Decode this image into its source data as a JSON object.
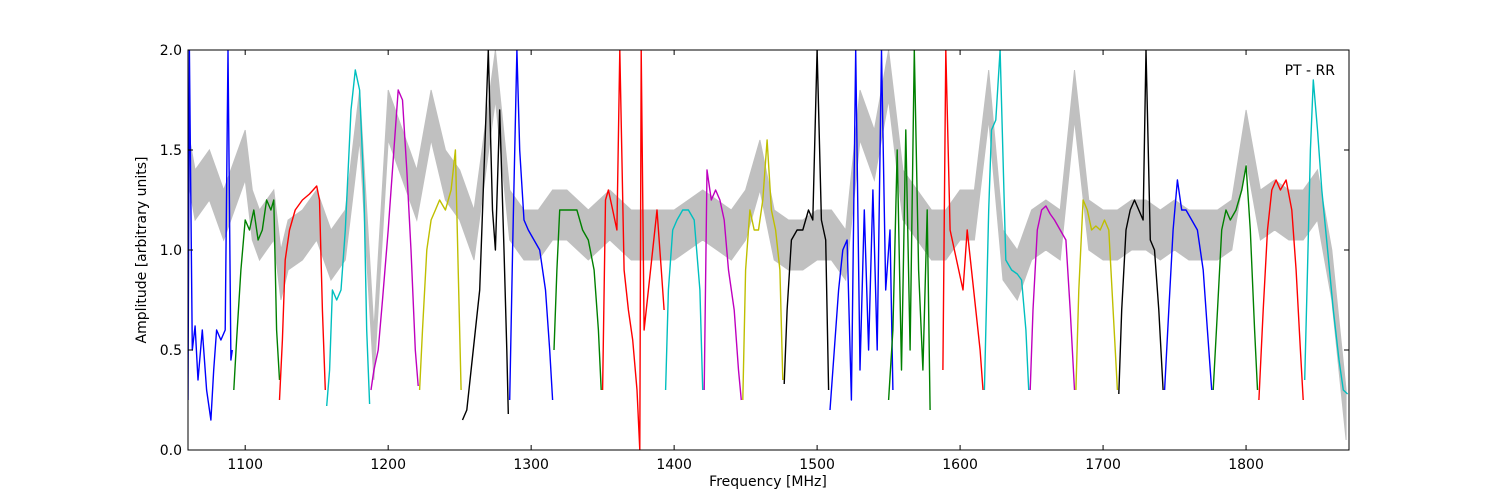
{
  "chart_data": {
    "type": "line",
    "title": "",
    "xlabel": "Frequency [MHz]",
    "ylabel": "Amplitude [arbitrary units]",
    "annotation": "PT - RR",
    "xlim": [
      1060,
      1872
    ],
    "ylim": [
      0.0,
      2.0
    ],
    "x_ticks": [
      1100,
      1200,
      1300,
      1400,
      1500,
      1600,
      1700,
      1800
    ],
    "x_tick_labels": [
      "1100",
      "1200",
      "1300",
      "1400",
      "1500",
      "1600",
      "1700",
      "1800"
    ],
    "y_ticks": [
      0.0,
      0.5,
      1.0,
      1.5,
      2.0
    ],
    "y_tick_labels": [
      "0.0",
      "0.5",
      "1.0",
      "1.5",
      "2.0"
    ],
    "grid": false,
    "background_series": {
      "color": "#c0c0c0",
      "x": [
        1060,
        1065,
        1075,
        1085,
        1095,
        1100,
        1105,
        1110,
        1115,
        1120,
        1125,
        1130,
        1140,
        1150,
        1160,
        1170,
        1180,
        1190,
        1200,
        1210,
        1220,
        1230,
        1240,
        1250,
        1260,
        1275,
        1285,
        1295,
        1305,
        1315,
        1325,
        1340,
        1355,
        1370,
        1385,
        1400,
        1410,
        1420,
        1430,
        1440,
        1450,
        1460,
        1470,
        1480,
        1490,
        1500,
        1510,
        1520,
        1530,
        1540,
        1550,
        1560,
        1570,
        1580,
        1590,
        1600,
        1610,
        1620,
        1630,
        1640,
        1650,
        1660,
        1670,
        1680,
        1690,
        1700,
        1710,
        1720,
        1730,
        1740,
        1750,
        1760,
        1770,
        1780,
        1790,
        1800,
        1810,
        1820,
        1830,
        1840,
        1850,
        1860,
        1870
      ],
      "y": [
        1.6,
        1.4,
        1.5,
        1.3,
        1.5,
        1.6,
        1.3,
        1.2,
        1.25,
        1.3,
        1.0,
        1.15,
        1.2,
        1.3,
        1.1,
        1.2,
        1.8,
        0.6,
        1.8,
        1.6,
        1.4,
        1.8,
        1.5,
        1.4,
        1.2,
        2.0,
        1.3,
        1.2,
        1.2,
        1.3,
        1.3,
        1.2,
        1.3,
        1.2,
        1.2,
        1.2,
        1.25,
        1.3,
        1.25,
        1.2,
        1.3,
        1.55,
        1.2,
        1.15,
        1.15,
        1.2,
        1.2,
        1.1,
        1.8,
        1.6,
        2.0,
        1.4,
        1.3,
        1.2,
        1.2,
        1.3,
        1.3,
        1.9,
        1.1,
        1.0,
        1.2,
        1.25,
        1.2,
        1.9,
        1.25,
        1.2,
        1.2,
        1.25,
        1.25,
        1.2,
        1.25,
        1.2,
        1.2,
        1.2,
        1.25,
        1.7,
        1.3,
        1.35,
        1.3,
        1.3,
        1.4,
        1.0,
        0.3
      ]
    },
    "series": [
      {
        "color": "#0000ff",
        "x": [
          1060,
          1061,
          1063,
          1065,
          1067,
          1070,
          1073,
          1076,
          1078,
          1080,
          1083,
          1086,
          1088,
          1090,
          1091
        ],
        "y": [
          0.25,
          2.0,
          0.5,
          0.62,
          0.35,
          0.6,
          0.3,
          0.15,
          0.4,
          0.6,
          0.55,
          0.6,
          2.0,
          0.45,
          0.5
        ]
      },
      {
        "color": "#008000",
        "x": [
          1092,
          1094,
          1097,
          1100,
          1103,
          1106,
          1109,
          1112,
          1115,
          1118,
          1120,
          1122,
          1124
        ],
        "y": [
          0.3,
          0.55,
          0.9,
          1.15,
          1.1,
          1.2,
          1.05,
          1.1,
          1.25,
          1.2,
          1.25,
          0.6,
          0.35
        ]
      },
      {
        "color": "#ff0000",
        "x": [
          1124,
          1126,
          1128,
          1131,
          1135,
          1140,
          1145,
          1150,
          1152,
          1154,
          1156
        ],
        "y": [
          0.25,
          0.55,
          0.95,
          1.1,
          1.2,
          1.25,
          1.28,
          1.32,
          1.25,
          0.7,
          0.3
        ]
      },
      {
        "color": "#00bfbf",
        "x": [
          1157,
          1159,
          1161,
          1164,
          1167,
          1170,
          1174,
          1177,
          1180,
          1183,
          1185,
          1187
        ],
        "y": [
          0.22,
          0.4,
          0.8,
          0.75,
          0.8,
          1.1,
          1.7,
          1.9,
          1.8,
          1.3,
          0.6,
          0.23
        ]
      },
      {
        "color": "#bf00bf",
        "x": [
          1188,
          1190,
          1193,
          1196,
          1200,
          1204,
          1207,
          1210,
          1213,
          1216,
          1219,
          1221
        ],
        "y": [
          0.3,
          0.4,
          0.5,
          0.75,
          1.1,
          1.5,
          1.8,
          1.75,
          1.4,
          1.0,
          0.5,
          0.32
        ]
      },
      {
        "color": "#bfbf00",
        "x": [
          1222,
          1224,
          1227,
          1230,
          1233,
          1236,
          1240,
          1244,
          1247,
          1249,
          1251
        ],
        "y": [
          0.3,
          0.6,
          1.0,
          1.15,
          1.2,
          1.25,
          1.2,
          1.3,
          1.5,
          0.9,
          0.3
        ]
      },
      {
        "color": "#000000",
        "x": [
          1252,
          1255,
          1258,
          1261,
          1264,
          1267,
          1270,
          1273,
          1275,
          1278,
          1281,
          1283,
          1284
        ],
        "y": [
          0.15,
          0.2,
          0.4,
          0.6,
          0.8,
          1.4,
          2.0,
          1.2,
          1.0,
          1.7,
          1.0,
          0.5,
          0.18
        ]
      },
      {
        "color": "#0000ff",
        "x": [
          1285,
          1287,
          1290,
          1292,
          1295,
          1298,
          1302,
          1306,
          1310,
          1313,
          1315
        ],
        "y": [
          0.25,
          1.0,
          2.0,
          1.5,
          1.15,
          1.1,
          1.05,
          1.0,
          0.8,
          0.5,
          0.25
        ]
      },
      {
        "color": "#008000",
        "x": [
          1316,
          1318,
          1320,
          1323,
          1327,
          1332,
          1336,
          1340,
          1344,
          1347,
          1349
        ],
        "y": [
          0.5,
          0.9,
          1.2,
          1.2,
          1.2,
          1.2,
          1.1,
          1.05,
          0.9,
          0.6,
          0.3
        ]
      },
      {
        "color": "#ff0000",
        "x": [
          1350,
          1352,
          1354,
          1357,
          1360,
          1362,
          1365,
          1368,
          1371,
          1374,
          1376,
          1377,
          1379,
          1382,
          1385,
          1388,
          1391,
          1393
        ],
        "y": [
          0.3,
          1.25,
          1.3,
          1.2,
          1.1,
          2.0,
          0.9,
          0.7,
          0.55,
          0.3,
          0.0,
          2.0,
          0.6,
          0.8,
          1.0,
          1.2,
          0.9,
          0.7
        ]
      },
      {
        "color": "#00bfbf",
        "x": [
          1394,
          1396,
          1399,
          1402,
          1406,
          1410,
          1414,
          1418,
          1420
        ],
        "y": [
          0.3,
          0.8,
          1.1,
          1.15,
          1.2,
          1.2,
          1.15,
          0.8,
          0.3
        ]
      },
      {
        "color": "#bf00bf",
        "x": [
          1421,
          1423,
          1426,
          1429,
          1432,
          1435,
          1438,
          1442,
          1445,
          1447
        ],
        "y": [
          0.3,
          1.4,
          1.25,
          1.3,
          1.25,
          1.15,
          0.9,
          0.7,
          0.4,
          0.25
        ]
      },
      {
        "color": "#bfbf00",
        "x": [
          1448,
          1450,
          1453,
          1456,
          1459,
          1462,
          1465,
          1468,
          1471,
          1474,
          1476
        ],
        "y": [
          0.25,
          0.9,
          1.2,
          1.1,
          1.1,
          1.25,
          1.55,
          1.2,
          1.1,
          0.9,
          0.35
        ]
      },
      {
        "color": "#000000",
        "x": [
          1477,
          1479,
          1482,
          1486,
          1490,
          1494,
          1497,
          1500,
          1503,
          1506,
          1508
        ],
        "y": [
          0.33,
          0.7,
          1.05,
          1.1,
          1.1,
          1.2,
          1.15,
          2.0,
          1.15,
          1.05,
          0.3
        ]
      },
      {
        "color": "#0000ff",
        "x": [
          1509,
          1512,
          1515,
          1518,
          1521,
          1524,
          1527,
          1530,
          1533,
          1536,
          1539,
          1542,
          1545,
          1548,
          1551,
          1553
        ],
        "y": [
          0.2,
          0.5,
          0.8,
          1.0,
          1.05,
          0.25,
          2.0,
          0.4,
          1.2,
          0.5,
          1.3,
          0.5,
          2.0,
          0.8,
          1.1,
          0.3
        ]
      },
      {
        "color": "#008000",
        "x": [
          1550,
          1553,
          1556,
          1559,
          1562,
          1565,
          1568,
          1571,
          1574,
          1577,
          1579
        ],
        "y": [
          0.25,
          0.6,
          1.5,
          0.4,
          1.6,
          0.5,
          2.0,
          0.9,
          0.4,
          1.2,
          0.2
        ]
      },
      {
        "color": "#ff0000",
        "x": [
          1588,
          1590,
          1593,
          1596,
          1599,
          1602,
          1605,
          1608,
          1611,
          1614,
          1616
        ],
        "y": [
          0.4,
          2.0,
          1.1,
          1.0,
          0.9,
          0.8,
          1.1,
          0.9,
          0.7,
          0.5,
          0.3
        ]
      },
      {
        "color": "#00bfbf",
        "x": [
          1617,
          1620,
          1622,
          1625,
          1628,
          1632,
          1636,
          1640,
          1643,
          1646,
          1648
        ],
        "y": [
          0.3,
          1.2,
          1.6,
          1.65,
          2.0,
          0.95,
          0.9,
          0.88,
          0.85,
          0.6,
          0.3
        ]
      },
      {
        "color": "#bf00bf",
        "x": [
          1649,
          1651,
          1654,
          1657,
          1660,
          1663,
          1666,
          1670,
          1674,
          1677,
          1680
        ],
        "y": [
          0.3,
          0.7,
          1.1,
          1.2,
          1.22,
          1.18,
          1.15,
          1.1,
          1.05,
          0.7,
          0.3
        ]
      },
      {
        "color": "#bfbf00",
        "x": [
          1681,
          1683,
          1686,
          1689,
          1692,
          1695,
          1698,
          1701,
          1704,
          1707,
          1710
        ],
        "y": [
          0.3,
          0.8,
          1.25,
          1.2,
          1.1,
          1.12,
          1.1,
          1.15,
          1.1,
          0.7,
          0.3
        ]
      },
      {
        "color": "#000000",
        "x": [
          1711,
          1713,
          1716,
          1719,
          1722,
          1725,
          1728,
          1730,
          1733,
          1736,
          1739,
          1742
        ],
        "y": [
          0.28,
          0.7,
          1.1,
          1.2,
          1.25,
          1.2,
          1.15,
          2.0,
          1.05,
          1.0,
          0.7,
          0.3
        ]
      },
      {
        "color": "#0000ff",
        "x": [
          1743,
          1746,
          1749,
          1752,
          1755,
          1758,
          1762,
          1766,
          1770,
          1773,
          1776
        ],
        "y": [
          0.3,
          0.7,
          1.1,
          1.35,
          1.2,
          1.2,
          1.15,
          1.1,
          0.9,
          0.6,
          0.3
        ]
      },
      {
        "color": "#008000",
        "x": [
          1777,
          1780,
          1783,
          1786,
          1789,
          1793,
          1797,
          1800,
          1803,
          1806,
          1808
        ],
        "y": [
          0.3,
          0.7,
          1.1,
          1.2,
          1.15,
          1.2,
          1.3,
          1.42,
          1.1,
          0.6,
          0.3
        ]
      },
      {
        "color": "#ff0000",
        "x": [
          1809,
          1812,
          1815,
          1818,
          1821,
          1824,
          1828,
          1832,
          1835,
          1838,
          1840
        ],
        "y": [
          0.25,
          0.7,
          1.1,
          1.3,
          1.35,
          1.3,
          1.35,
          1.2,
          0.9,
          0.5,
          0.25
        ]
      },
      {
        "color": "#00bfbf",
        "x": [
          1841,
          1843,
          1845,
          1847,
          1850,
          1853,
          1857,
          1861,
          1865,
          1868,
          1871
        ],
        "y": [
          0.35,
          0.9,
          1.5,
          1.85,
          1.6,
          1.3,
          1.0,
          0.7,
          0.45,
          0.3,
          0.28
        ]
      }
    ]
  }
}
